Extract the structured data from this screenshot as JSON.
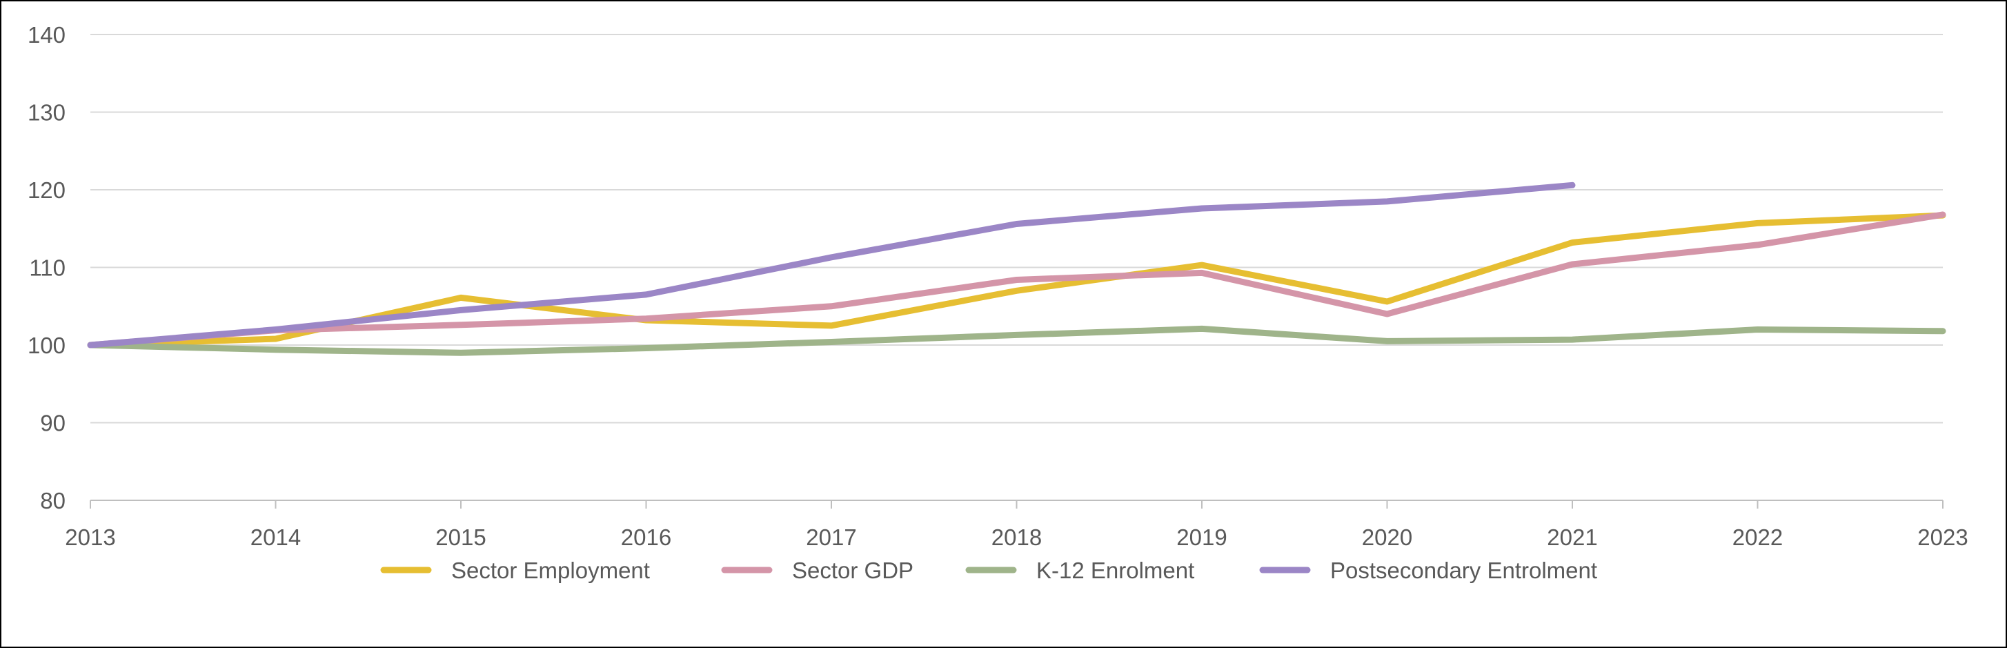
{
  "chart_data": {
    "type": "line",
    "title": "",
    "xlabel": "",
    "ylabel": "",
    "x": [
      "2013",
      "2014",
      "2015",
      "2016",
      "2017",
      "2018",
      "2019",
      "2020",
      "2021",
      "2022",
      "2023"
    ],
    "ylim": [
      80,
      140
    ],
    "yticks": [
      80,
      90,
      100,
      110,
      120,
      130,
      140
    ],
    "grid": true,
    "legend_position": "bottom",
    "series": [
      {
        "name": "Sector Employment",
        "color": "#E6BE32",
        "values": [
          100,
          100.8,
          106.1,
          103.2,
          102.5,
          107.0,
          110.3,
          105.6,
          113.2,
          115.7,
          116.7
        ]
      },
      {
        "name": "Sector GDP",
        "color": "#D495A8",
        "values": [
          100,
          101.9,
          102.6,
          103.4,
          105.0,
          108.4,
          109.3,
          104.0,
          110.4,
          112.9,
          116.8
        ]
      },
      {
        "name": "K-12 Enrolment",
        "color": "#9FB48A",
        "values": [
          100,
          99.4,
          99.0,
          99.6,
          100.4,
          101.3,
          102.1,
          100.5,
          100.7,
          102.0,
          101.8
        ]
      },
      {
        "name": "Postsecondary Entrolment",
        "color": "#9B86C6",
        "values": [
          100,
          102.0,
          104.5,
          106.5,
          111.3,
          115.6,
          117.6,
          118.5,
          120.6,
          null,
          null
        ]
      }
    ]
  }
}
